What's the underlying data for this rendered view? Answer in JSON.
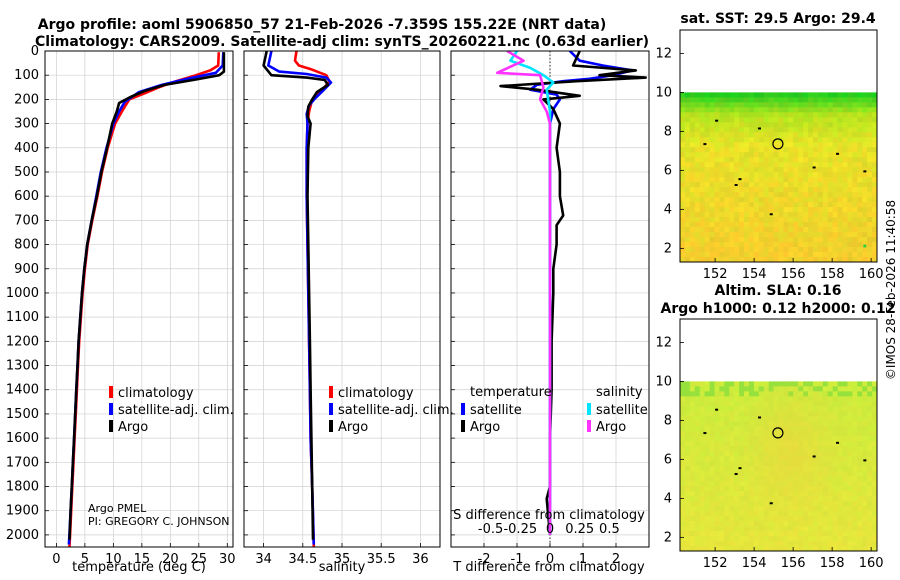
{
  "title_line1": "Argo profile: aoml 5906850_57 21-Feb-2026 -7.359S 155.22E (NRT data)",
  "title_line2": "Climatology: CARS2009. Satellite-adj clim: synTS_20260221.nc (0.63d earlier)",
  "colors": {
    "climatology": "#ff0000",
    "satellite_adj": "#0000ff",
    "argo": "#000000",
    "salinity_satellite": "#00e5ff",
    "salinity_argo": "#ff33ff"
  },
  "depth_axis": {
    "ylim": [
      2050,
      0
    ],
    "ticks": [
      0,
      100,
      200,
      300,
      400,
      500,
      600,
      700,
      800,
      900,
      1000,
      1100,
      1200,
      1300,
      1400,
      1500,
      1600,
      1700,
      1800,
      1900,
      2000
    ],
    "tick_labels": [
      "0",
      "100",
      "200",
      "300",
      "400",
      "500",
      "600",
      "700",
      "800",
      "900",
      "1000",
      "1100",
      "1200",
      "1300",
      "1400",
      "1500",
      "1600",
      "1700",
      "1800",
      "1900",
      "2000"
    ]
  },
  "legend_main": {
    "climatology": "climatology",
    "satellite": "satellite-adj. clim.",
    "argo": "Argo"
  },
  "legend_diff": {
    "temperature": "temperature",
    "salinity": "salinity",
    "satellite": "satellite",
    "argo": "Argo"
  },
  "attribution": {
    "line1": "Argo PMEL",
    "line2": "PI: GREGORY C. JOHNSON"
  },
  "chart_data": [
    {
      "type": "line",
      "id": "temperature_profile",
      "xlabel": "temperature (deg C)",
      "xlim": [
        -2,
        31
      ],
      "xticks": [
        0,
        5,
        10,
        15,
        20,
        25,
        30
      ],
      "xtick_labels": [
        "0",
        "5",
        "10",
        "15",
        "20",
        "25",
        "30"
      ],
      "series": [
        {
          "name": "climatology",
          "color": "#ff0000",
          "points": [
            [
              28.5,
              5
            ],
            [
              28.4,
              60
            ],
            [
              27.0,
              80
            ],
            [
              24.5,
              100
            ],
            [
              21.0,
              125
            ],
            [
              18.0,
              150
            ],
            [
              15.5,
              175
            ],
            [
              12.8,
              200
            ],
            [
              11.5,
              250
            ],
            [
              10.3,
              300
            ],
            [
              9.0,
              400
            ],
            [
              8.0,
              500
            ],
            [
              7.2,
              600
            ],
            [
              6.3,
              700
            ],
            [
              5.5,
              800
            ],
            [
              5.0,
              900
            ],
            [
              4.6,
              1000
            ],
            [
              4.3,
              1100
            ],
            [
              4.0,
              1200
            ],
            [
              3.8,
              1300
            ],
            [
              3.6,
              1400
            ],
            [
              3.4,
              1500
            ],
            [
              3.2,
              1600
            ],
            [
              3.0,
              1700
            ],
            [
              2.8,
              1800
            ],
            [
              2.6,
              1900
            ],
            [
              2.3,
              2050
            ]
          ]
        },
        {
          "name": "satellite-adj. clim.",
          "color": "#0000ff",
          "points": [
            [
              29.3,
              5
            ],
            [
              29.2,
              60
            ],
            [
              28.0,
              90
            ],
            [
              23.0,
              115
            ],
            [
              18.5,
              140
            ],
            [
              14.5,
              170
            ],
            [
              12.0,
              210
            ],
            [
              11.0,
              250
            ],
            [
              10.0,
              300
            ],
            [
              8.8,
              400
            ],
            [
              7.8,
              500
            ],
            [
              7.0,
              600
            ],
            [
              6.2,
              700
            ],
            [
              5.4,
              800
            ],
            [
              4.9,
              900
            ],
            [
              4.5,
              1000
            ],
            [
              4.2,
              1100
            ],
            [
              3.9,
              1200
            ],
            [
              3.7,
              1300
            ],
            [
              3.5,
              1400
            ],
            [
              3.3,
              1500
            ],
            [
              3.1,
              1600
            ],
            [
              2.9,
              1700
            ],
            [
              2.7,
              1800
            ],
            [
              2.5,
              1900
            ],
            [
              2.2,
              2040
            ]
          ]
        },
        {
          "name": "Argo",
          "color": "#000000",
          "points": [
            [
              29.4,
              5
            ],
            [
              29.4,
              85
            ],
            [
              28.6,
              100
            ],
            [
              24.0,
              120
            ],
            [
              19.0,
              140
            ],
            [
              15.5,
              165
            ],
            [
              13.0,
              190
            ],
            [
              11.0,
              215
            ],
            [
              10.6,
              250
            ],
            [
              9.8,
              300
            ],
            [
              8.9,
              400
            ],
            [
              7.9,
              500
            ],
            [
              7.1,
              600
            ],
            [
              6.2,
              700
            ],
            [
              5.4,
              800
            ],
            [
              4.9,
              900
            ],
            [
              4.5,
              1000
            ],
            [
              4.2,
              1100
            ],
            [
              3.9,
              1200
            ],
            [
              3.7,
              1300
            ],
            [
              3.5,
              1400
            ],
            [
              3.3,
              1500
            ],
            [
              3.1,
              1600
            ],
            [
              2.9,
              1700
            ],
            [
              2.7,
              1800
            ],
            [
              2.5,
              1900
            ],
            [
              2.3,
              2020
            ]
          ]
        }
      ]
    },
    {
      "type": "line",
      "id": "salinity_profile",
      "xlabel": "salinity",
      "xlim": [
        33.75,
        36.25
      ],
      "xticks": [
        34,
        34.5,
        35,
        35.5,
        36
      ],
      "xtick_labels": [
        "34",
        "34.5",
        "35",
        "35.5",
        "36"
      ],
      "series": [
        {
          "name": "climatology",
          "color": "#ff0000",
          "points": [
            [
              34.42,
              0
            ],
            [
              34.4,
              40
            ],
            [
              34.45,
              60
            ],
            [
              34.6,
              75
            ],
            [
              34.8,
              100
            ],
            [
              34.84,
              125
            ],
            [
              34.75,
              160
            ],
            [
              34.62,
              200
            ],
            [
              34.58,
              250
            ],
            [
              34.56,
              300
            ],
            [
              34.55,
              400
            ],
            [
              34.55,
              600
            ],
            [
              34.56,
              800
            ],
            [
              34.57,
              1000
            ],
            [
              34.58,
              1200
            ],
            [
              34.59,
              1400
            ],
            [
              34.6,
              1600
            ],
            [
              34.62,
              1800
            ],
            [
              34.64,
              2050
            ]
          ]
        },
        {
          "name": "satellite-adj. clim.",
          "color": "#0000ff",
          "points": [
            [
              34.1,
              0
            ],
            [
              34.06,
              60
            ],
            [
              34.2,
              85
            ],
            [
              34.55,
              95
            ],
            [
              34.8,
              110
            ],
            [
              34.86,
              130
            ],
            [
              34.77,
              160
            ],
            [
              34.66,
              195
            ],
            [
              34.58,
              225
            ],
            [
              34.55,
              260
            ],
            [
              34.56,
              300
            ],
            [
              34.55,
              400
            ],
            [
              34.55,
              600
            ],
            [
              34.56,
              800
            ],
            [
              34.57,
              1000
            ],
            [
              34.58,
              1200
            ],
            [
              34.59,
              1400
            ],
            [
              34.6,
              1600
            ],
            [
              34.62,
              1800
            ],
            [
              34.64,
              2040
            ]
          ]
        },
        {
          "name": "Argo",
          "color": "#000000",
          "points": [
            [
              34.04,
              0
            ],
            [
              34.0,
              60
            ],
            [
              34.1,
              100
            ],
            [
              34.55,
              110
            ],
            [
              34.78,
              120
            ],
            [
              34.82,
              140
            ],
            [
              34.68,
              170
            ],
            [
              34.62,
              200
            ],
            [
              34.57,
              230
            ],
            [
              34.56,
              270
            ],
            [
              34.6,
              300
            ],
            [
              34.57,
              400
            ],
            [
              34.56,
              600
            ],
            [
              34.57,
              800
            ],
            [
              34.58,
              1000
            ],
            [
              34.59,
              1200
            ],
            [
              34.6,
              1400
            ],
            [
              34.61,
              1600
            ],
            [
              34.62,
              1800
            ],
            [
              34.63,
              2020
            ]
          ]
        }
      ]
    },
    {
      "type": "line",
      "id": "difference_profile",
      "xlabel": "T difference from climatology",
      "xlabel_top": "S difference from climatology",
      "xlim": [
        -3,
        3
      ],
      "xticks": [
        -2,
        -1,
        0,
        1,
        2
      ],
      "xtick_labels": [
        "-2",
        "-1",
        "0",
        "1",
        "2"
      ],
      "top_ticks": [
        -0.5,
        -0.25,
        0,
        0.25,
        0.5
      ],
      "top_tick_labels": [
        "-0.5",
        "-0.25",
        "0",
        "0.25",
        "0.5"
      ],
      "series": [
        {
          "name": "temperature satellite",
          "color": "#0000ff",
          "points": [
            [
              0.6,
              0
            ],
            [
              0.9,
              40
            ],
            [
              1.6,
              60
            ],
            [
              2.5,
              80
            ],
            [
              1.9,
              100
            ],
            [
              1.2,
              115
            ],
            [
              0.4,
              125
            ],
            [
              -0.4,
              140
            ],
            [
              -0.6,
              160
            ],
            [
              0.2,
              180
            ],
            [
              0.3,
              200
            ],
            [
              0.1,
              240
            ],
            [
              0.0,
              300
            ],
            [
              0.0,
              500
            ],
            [
              0.0,
              1000
            ],
            [
              0.0,
              1500
            ],
            [
              0.0,
              2000
            ]
          ]
        },
        {
          "name": "temperature Argo",
          "color": "#000000",
          "points": [
            [
              0.9,
              0
            ],
            [
              0.7,
              60
            ],
            [
              2.6,
              80
            ],
            [
              1.5,
              100
            ],
            [
              2.9,
              110
            ],
            [
              0.8,
              125
            ],
            [
              -1.5,
              145
            ],
            [
              -0.4,
              160
            ],
            [
              0.9,
              185
            ],
            [
              -0.2,
              200
            ],
            [
              0.1,
              240
            ],
            [
              0.3,
              300
            ],
            [
              0.2,
              400
            ],
            [
              0.3,
              500
            ],
            [
              0.3,
              600
            ],
            [
              0.4,
              680
            ],
            [
              0.2,
              720
            ],
            [
              0.2,
              800
            ],
            [
              0.1,
              900
            ],
            [
              0.1,
              1000
            ],
            [
              0.05,
              1200
            ],
            [
              0.05,
              1400
            ],
            [
              0.0,
              1600
            ],
            [
              0.0,
              1800
            ],
            [
              -0.1,
              1850
            ],
            [
              0.0,
              2000
            ]
          ]
        },
        {
          "name": "salinity satellite",
          "color": "#00e5ff",
          "points": [
            [
              -1.0,
              0
            ],
            [
              -1.2,
              40
            ],
            [
              -0.6,
              70
            ],
            [
              -0.2,
              100
            ],
            [
              0.1,
              130
            ],
            [
              -0.1,
              160
            ],
            [
              0.0,
              250
            ],
            [
              0.0,
              1000
            ],
            [
              0.0,
              2000
            ]
          ]
        },
        {
          "name": "salinity Argo",
          "color": "#ff33ff",
          "points": [
            [
              -1.3,
              0
            ],
            [
              -0.8,
              40
            ],
            [
              -1.6,
              90
            ],
            [
              -0.3,
              100
            ],
            [
              -0.2,
              150
            ],
            [
              -0.3,
              200
            ],
            [
              -0.1,
              250
            ],
            [
              0.0,
              300
            ],
            [
              0.0,
              500
            ],
            [
              0.0,
              1000
            ],
            [
              0.0,
              1500
            ],
            [
              0.0,
              2000
            ]
          ]
        }
      ]
    },
    {
      "type": "heatmap",
      "id": "sst_map",
      "title": "sat. SST: 29.5 Argo: 29.4",
      "xlim": [
        150.2,
        160.3
      ],
      "ylim": [
        1.3,
        13.2
      ],
      "xticks": [
        152,
        154,
        156,
        158,
        160
      ],
      "xtick_labels": [
        "152",
        "154",
        "156",
        "158",
        "160"
      ],
      "yticks": [
        2,
        4,
        6,
        8,
        10,
        12
      ],
      "ytick_labels": [
        "2",
        "4",
        "6",
        "8",
        "10",
        "12"
      ],
      "data_top_lat": 10,
      "argo_position": [
        155.22,
        7.36
      ]
    },
    {
      "type": "heatmap",
      "id": "sla_map",
      "title": "Altim. SLA: 0.16",
      "subtitle": "Argo h1000: 0.12 h2000: 0.12",
      "xlim": [
        150.2,
        160.3
      ],
      "ylim": [
        1.3,
        13.2
      ],
      "xticks": [
        152,
        154,
        156,
        158,
        160
      ],
      "xtick_labels": [
        "152",
        "154",
        "156",
        "158",
        "160"
      ],
      "yticks": [
        2,
        4,
        6,
        8,
        10,
        12
      ],
      "ytick_labels": [
        "2",
        "4",
        "6",
        "8",
        "10",
        "12"
      ],
      "data_top_lat": 10,
      "argo_position": [
        155.22,
        7.36
      ]
    }
  ],
  "footer_stamp": "©IMOS 28-Feb-2026 11:40:58"
}
